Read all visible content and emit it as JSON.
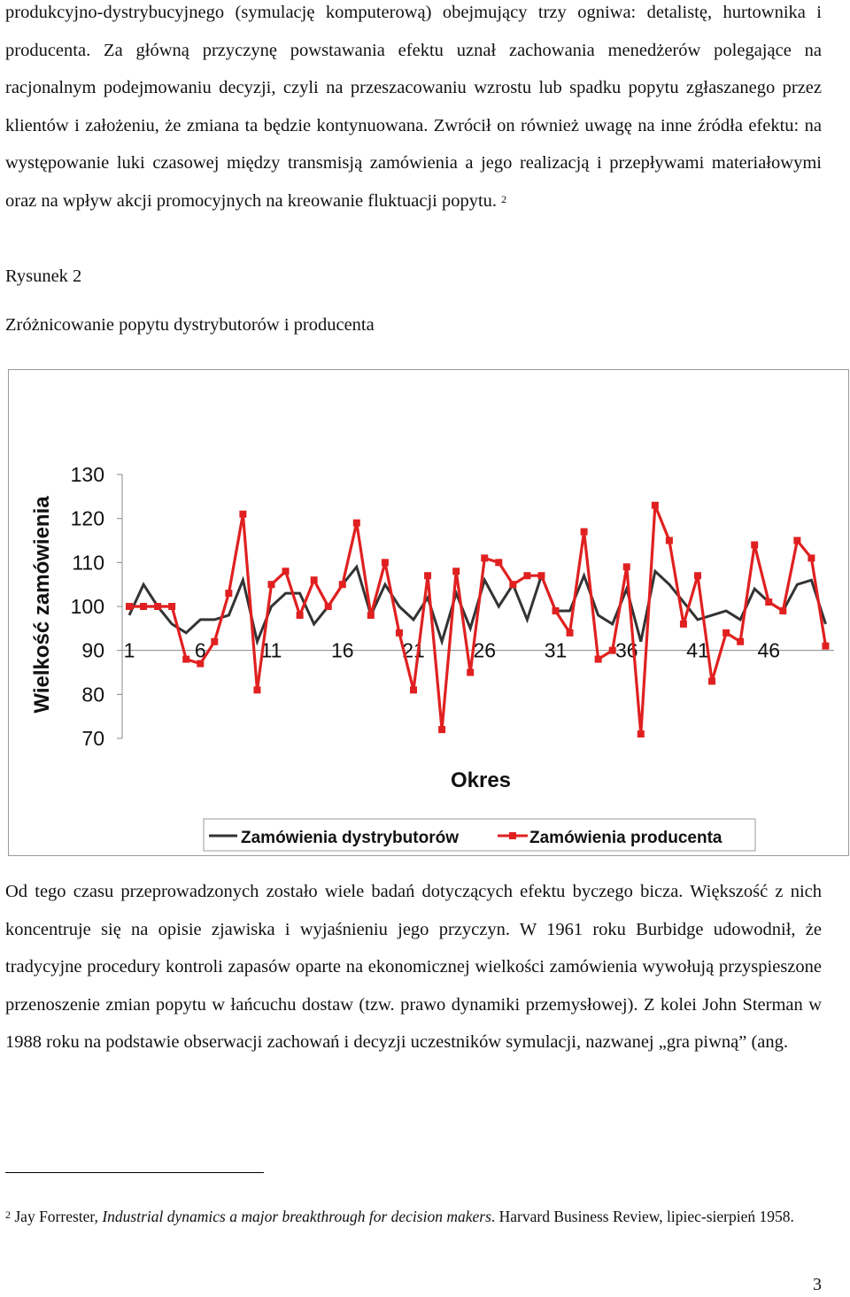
{
  "text": {
    "para1": "produkcyjno-dystrybucyjnego (symulację komputerową) obejmujący trzy ogniwa: detalistę, hurtownika i producenta. Za główną przyczynę powstawania efektu uznał zachowania menedżerów polegające na racjonalnym podejmowaniu decyzji, czyli na przeszacowaniu wzrostu lub spadku popytu zgłaszanego przez klientów i założeniu, że zmiana ta będzie kontynuowana. Zwrócił on również uwagę na inne źródła efektu: na występowanie luki czasowej między transmisją zamówienia a jego realizacją i przepływami materiałowymi oraz na wpływ akcji promocyjnych na kreowanie fluktuacji popytu.",
    "para1_ref": "2",
    "figure_label": "Rysunek 2",
    "figure_title": "Zróżnicowanie popytu dystrybutorów i producenta",
    "para2": "Od tego czasu przeprowadzonych zostało wiele badań dotyczących efektu byczego bicza. Większość z nich koncentruje się na opisie zjawiska i wyjaśnieniu jego przyczyn. W 1961 roku Burbidge udowodnił, że tradycyjne procedury kontroli zapasów oparte na ekonomicznej wielkości zamówienia wywołują przyspieszone przenoszenie zmian popytu w łańcuchu dostaw (tzw. prawo dynamiki przemysłowej). Z kolei John Sterman w 1988 roku na podstawie obserwacji zachowań i decyzji uczestników symulacji, nazwanej „gra piwną” (ang.",
    "footnote_num": "2",
    "footnote_a": "Jay Forrester, ",
    "footnote_b": "Industrial dynamics a major breakthrough for decision  makers",
    "footnote_c": ". Harvard Business Review, lipiec-sierpień 1958.",
    "page_number": "3"
  },
  "chart_data": {
    "type": "line",
    "ylabel": "Wielkość zamówienia",
    "xlabel": "Okres",
    "ylim": [
      70,
      130
    ],
    "yticks": [
      130,
      120,
      110,
      100,
      90,
      80,
      70
    ],
    "xtick_labels": [
      "1",
      "6",
      "11",
      "16",
      "21",
      "26",
      "31",
      "36",
      "41",
      "46"
    ],
    "legend_position": "bottom",
    "grid": false,
    "series": [
      {
        "name": "Zamówienia dystrybutorów",
        "color": "#333333",
        "values": [
          98,
          105,
          100,
          96,
          94,
          97,
          97,
          98,
          106,
          92,
          100,
          103,
          103,
          96,
          100,
          105,
          109,
          98,
          105,
          100,
          97,
          102,
          92,
          103,
          95,
          106,
          100,
          105,
          97,
          107,
          99,
          99,
          107,
          98,
          96,
          104,
          92,
          108,
          105,
          101,
          97,
          98,
          99,
          97,
          104,
          101,
          99,
          105,
          106,
          96
        ]
      },
      {
        "name": "Zamówienia producenta",
        "color": "#e02020",
        "values": [
          100,
          100,
          100,
          100,
          88,
          87,
          92,
          103,
          121,
          81,
          105,
          108,
          98,
          106,
          100,
          105,
          119,
          98,
          110,
          94,
          81,
          107,
          72,
          108,
          85,
          111,
          110,
          105,
          107,
          107,
          99,
          94,
          117,
          88,
          90,
          109,
          71,
          123,
          115,
          96,
          107,
          83,
          94,
          92,
          114,
          101,
          99,
          115,
          111,
          91
        ]
      }
    ]
  }
}
